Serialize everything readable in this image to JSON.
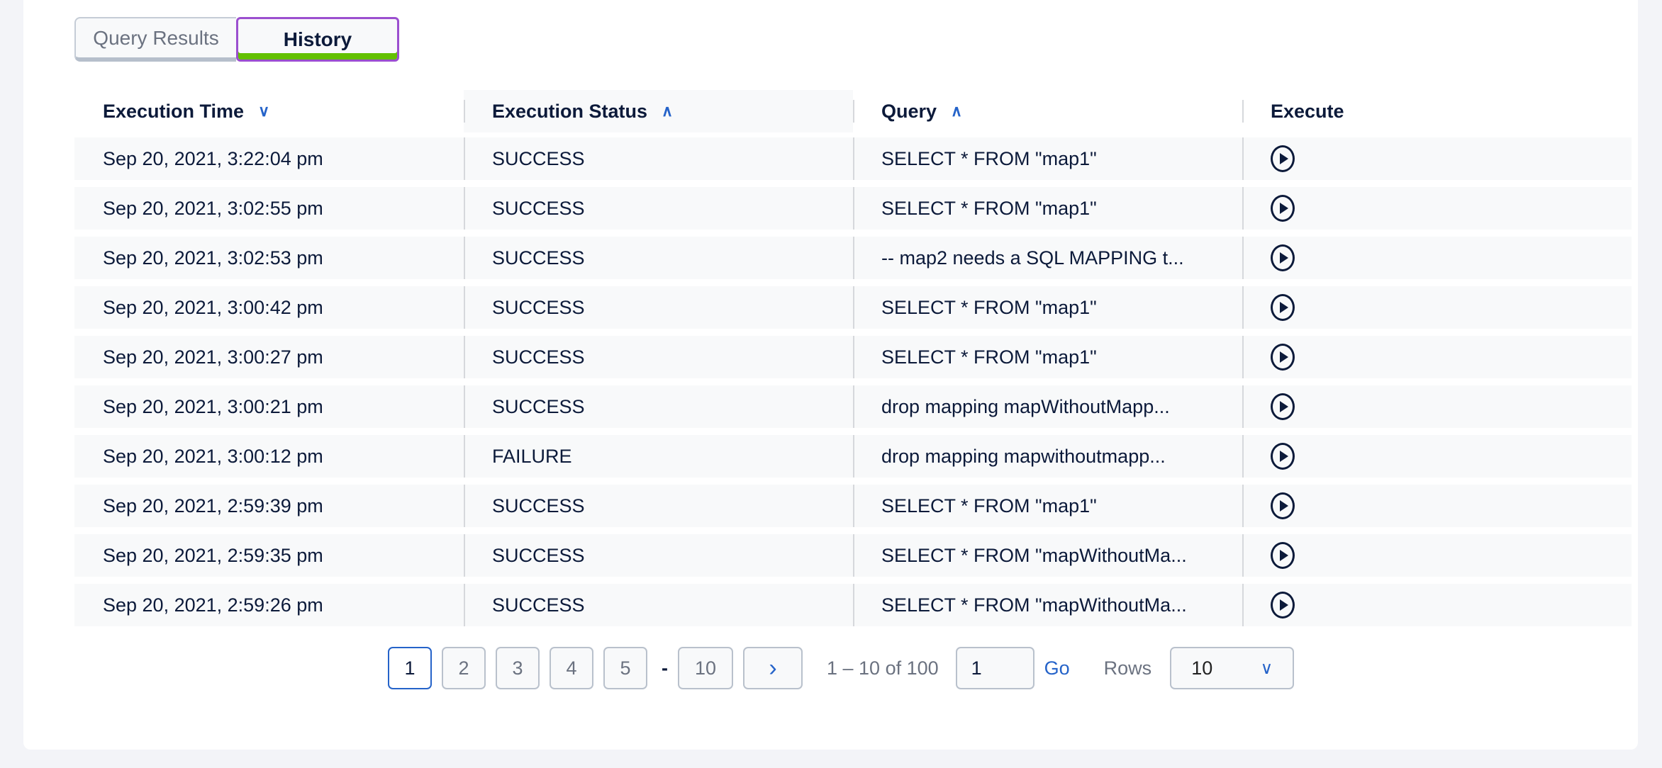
{
  "tabs": [
    {
      "label": "Query Results",
      "active": false
    },
    {
      "label": "History",
      "active": true
    }
  ],
  "table": {
    "headers": [
      {
        "label": "Execution Time",
        "sort": "descending",
        "sort_icon": "chevron-down-icon"
      },
      {
        "label": "Execution Status",
        "sort": "ascending",
        "sort_icon": "chevron-up-icon"
      },
      {
        "label": "Query",
        "sort": "ascending",
        "sort_icon": "chevron-up-icon"
      },
      {
        "label": "Execute"
      }
    ],
    "rows": [
      {
        "time": "Sep 20, 2021, 3:22:04 pm",
        "status": "SUCCESS",
        "query": "SELECT * FROM \"map1\""
      },
      {
        "time": "Sep 20, 2021, 3:02:55 pm",
        "status": "SUCCESS",
        "query": "SELECT * FROM \"map1\""
      },
      {
        "time": "Sep 20, 2021, 3:02:53 pm",
        "status": "SUCCESS",
        "query": "-- map2 needs a SQL MAPPING t..."
      },
      {
        "time": "Sep 20, 2021, 3:00:42 pm",
        "status": "SUCCESS",
        "query": "SELECT * FROM \"map1\""
      },
      {
        "time": "Sep 20, 2021, 3:00:27 pm",
        "status": "SUCCESS",
        "query": "SELECT * FROM \"map1\""
      },
      {
        "time": "Sep 20, 2021, 3:00:21 pm",
        "status": "SUCCESS",
        "query": "drop mapping mapWithoutMapp..."
      },
      {
        "time": "Sep 20, 2021, 3:00:12 pm",
        "status": "FAILURE",
        "query": "drop mapping mapwithoutmapp..."
      },
      {
        "time": "Sep 20, 2021, 2:59:39 pm",
        "status": "SUCCESS",
        "query": "SELECT * FROM \"map1\""
      },
      {
        "time": "Sep 20, 2021, 2:59:35 pm",
        "status": "SUCCESS",
        "query": "SELECT * FROM \"mapWithoutMa..."
      },
      {
        "time": "Sep 20, 2021, 2:59:26 pm",
        "status": "SUCCESS",
        "query": "SELECT * FROM \"mapWithoutMa..."
      }
    ],
    "execute_icon": "play-circle-icon"
  },
  "pagination": {
    "pages": [
      "1",
      "2",
      "3",
      "4",
      "5"
    ],
    "current": "1",
    "ellipsis": "-",
    "last": "10",
    "next_icon": "chevron-right-icon",
    "range": "1 – 10 of 100",
    "goto_value": "1",
    "go_label": "Go",
    "rows_label": "Rows",
    "rows_value": "10"
  },
  "colors": {
    "accent": "#2563c9",
    "tab_focus": "#9b4fcf",
    "tab_active_bar": "#63c000",
    "text": "#0c1a3a"
  }
}
